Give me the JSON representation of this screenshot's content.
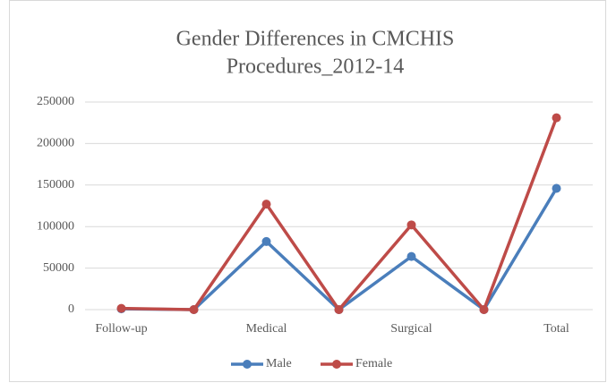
{
  "chart_data": {
    "type": "line",
    "title": [
      "Gender Differences in CMCHIS",
      "Procedures_2012-14"
    ],
    "categories": [
      "Follow-up",
      null,
      "Medical",
      null,
      "Surgical",
      null,
      "Total"
    ],
    "series": [
      {
        "name": "Male",
        "color": "#4a7ebb",
        "values": [
          1000,
          0,
          82000,
          0,
          64000,
          0,
          146000
        ]
      },
      {
        "name": "Female",
        "color": "#be4b48",
        "values": [
          1500,
          0,
          127000,
          0,
          102000,
          0,
          231000
        ]
      }
    ],
    "ylim": [
      0,
      250000
    ],
    "yticks": [
      0,
      50000,
      100000,
      150000,
      200000,
      250000
    ],
    "grid": true,
    "legend": "bottom"
  }
}
